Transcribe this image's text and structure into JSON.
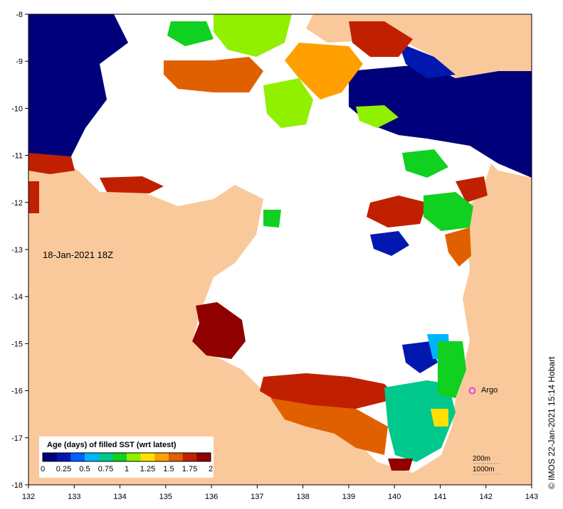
{
  "map": {
    "date_label": "18-Jan-2021 18Z",
    "colorbar": {
      "title": "Age (days) of filled SST (wrt latest)",
      "ticks": [
        "0",
        "0.25",
        "0.5",
        "0.75",
        "1",
        "1.25",
        "1.5",
        "1.75",
        "2"
      ],
      "colors": [
        "#00007a",
        "#0018b0",
        "#0060ff",
        "#00b4ff",
        "#00c88c",
        "#10d020",
        "#90f000",
        "#ffe000",
        "#ffa000",
        "#e06000",
        "#c02000",
        "#900000"
      ]
    },
    "x_ticks": [
      "132",
      "133",
      "134",
      "135",
      "136",
      "137",
      "138",
      "139",
      "140",
      "141",
      "142",
      "143"
    ],
    "y_ticks": [
      "-8",
      "-9",
      "-10",
      "-11",
      "-12",
      "-13",
      "-14",
      "-15",
      "-16",
      "-17",
      "-18"
    ],
    "argo": {
      "label": "Argo",
      "lon": 141.7,
      "lat": -16.0,
      "color": "#e040e0"
    },
    "contour_labels": [
      "200m",
      "1000m"
    ],
    "credit": "© IMOS 22-Jan-2021 15:14 Hobart",
    "land_color": "#f9c99c",
    "missing_color": "#ffffff"
  }
}
